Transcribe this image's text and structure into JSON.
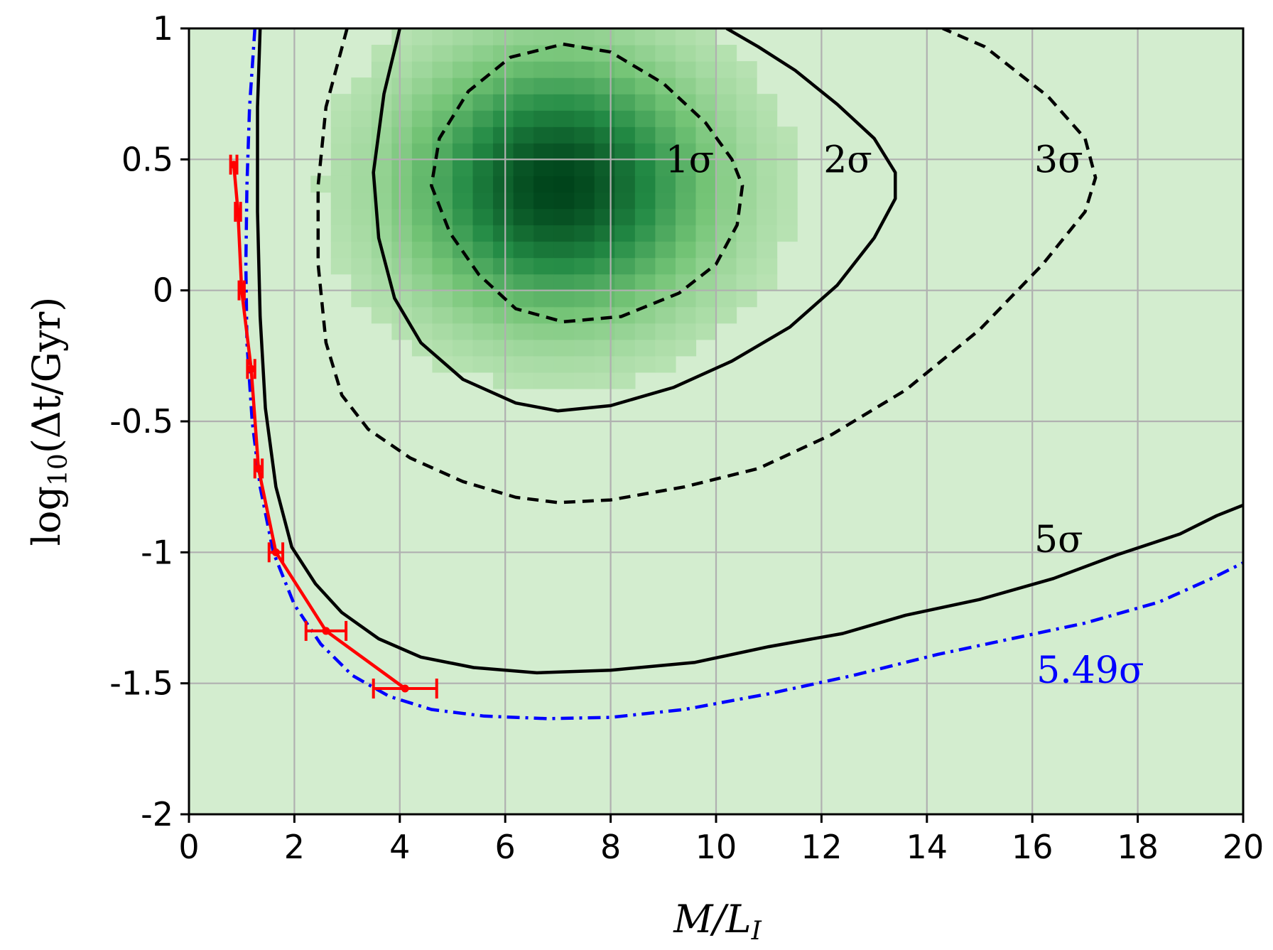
{
  "chart_data": {
    "type": "heatmap",
    "title": "",
    "xlabel": "M/L",
    "xlabel_sub": "I",
    "ylabel_pre": "log",
    "ylabel_sub": "10",
    "ylabel_post": "(Δt/Gyr)",
    "xlim": [
      0,
      20
    ],
    "ylim": [
      -2,
      1
    ],
    "grid": true,
    "x_ticks": [
      {
        "value": 0,
        "label": "0"
      },
      {
        "value": 2,
        "label": "2"
      },
      {
        "value": 4,
        "label": "4"
      },
      {
        "value": 6,
        "label": "6"
      },
      {
        "value": 8,
        "label": "8"
      },
      {
        "value": 10,
        "label": "10"
      },
      {
        "value": 12,
        "label": "12"
      },
      {
        "value": 14,
        "label": "14"
      },
      {
        "value": 16,
        "label": "16"
      },
      {
        "value": 18,
        "label": "18"
      },
      {
        "value": 20,
        "label": "20"
      }
    ],
    "y_ticks": [
      {
        "value": -2,
        "label": "-2"
      },
      {
        "value": -1.5,
        "label": "-1.5"
      },
      {
        "value": -1,
        "label": "-1"
      },
      {
        "value": -0.5,
        "label": "-0.5"
      },
      {
        "value": 0,
        "label": "0"
      },
      {
        "value": 0.5,
        "label": "0.5"
      },
      {
        "value": 1,
        "label": "1"
      }
    ],
    "density": {
      "peak_x": 7.0,
      "peak_y": 0.4,
      "spread_x": 1.9,
      "spread_y": 0.33,
      "background_color": "#d3edcf",
      "peak_color": "#00441b"
    },
    "contours": [
      {
        "label": "1σ",
        "style": "dashed",
        "color": "#000000",
        "label_x": 9.5,
        "label_y": 0.5,
        "points": [
          [
            7.1,
            0.94
          ],
          [
            8.0,
            0.91
          ],
          [
            9.0,
            0.79
          ],
          [
            9.8,
            0.64
          ],
          [
            10.3,
            0.5
          ],
          [
            10.5,
            0.4
          ],
          [
            10.4,
            0.25
          ],
          [
            10.0,
            0.1
          ],
          [
            9.3,
            -0.01
          ],
          [
            8.2,
            -0.1
          ],
          [
            7.1,
            -0.12
          ],
          [
            6.2,
            -0.07
          ],
          [
            5.5,
            0.06
          ],
          [
            4.95,
            0.22
          ],
          [
            4.6,
            0.4
          ],
          [
            4.75,
            0.58
          ],
          [
            5.3,
            0.76
          ],
          [
            6.1,
            0.89
          ],
          [
            7.1,
            0.94
          ]
        ]
      },
      {
        "label": "2σ",
        "style": "solid",
        "color": "#000000",
        "label_x": 12.5,
        "label_y": 0.5,
        "points": [
          [
            4.0,
            1.0
          ],
          [
            3.7,
            0.75
          ],
          [
            3.5,
            0.45
          ],
          [
            3.6,
            0.2
          ],
          [
            3.9,
            -0.03
          ],
          [
            4.4,
            -0.2
          ],
          [
            5.2,
            -0.34
          ],
          [
            6.2,
            -0.43
          ],
          [
            7.0,
            -0.46
          ],
          [
            8.0,
            -0.44
          ],
          [
            9.2,
            -0.37
          ],
          [
            10.3,
            -0.27
          ],
          [
            11.4,
            -0.14
          ],
          [
            12.3,
            0.02
          ],
          [
            13.0,
            0.2
          ],
          [
            13.4,
            0.35
          ],
          [
            13.4,
            0.45
          ],
          [
            13.0,
            0.58
          ],
          [
            12.3,
            0.71
          ],
          [
            11.5,
            0.84
          ],
          [
            10.8,
            0.93
          ],
          [
            10.2,
            1.0
          ]
        ]
      },
      {
        "label": "3σ",
        "style": "dashed",
        "color": "#000000",
        "label_x": 16.5,
        "label_y": 0.5,
        "points": [
          [
            3.0,
            1.0
          ],
          [
            2.6,
            0.7
          ],
          [
            2.45,
            0.4
          ],
          [
            2.45,
            0.1
          ],
          [
            2.6,
            -0.2
          ],
          [
            2.9,
            -0.4
          ],
          [
            3.4,
            -0.53
          ],
          [
            4.2,
            -0.64
          ],
          [
            5.2,
            -0.73
          ],
          [
            6.2,
            -0.79
          ],
          [
            7.0,
            -0.81
          ],
          [
            8.0,
            -0.8
          ],
          [
            9.4,
            -0.75
          ],
          [
            10.8,
            -0.68
          ],
          [
            12.2,
            -0.55
          ],
          [
            13.6,
            -0.38
          ],
          [
            15.0,
            -0.15
          ],
          [
            16.2,
            0.1
          ],
          [
            17.0,
            0.3
          ],
          [
            17.2,
            0.43
          ],
          [
            17.0,
            0.58
          ],
          [
            16.3,
            0.74
          ],
          [
            15.1,
            0.93
          ],
          [
            14.3,
            1.0
          ]
        ]
      },
      {
        "label": "5σ",
        "style": "solid",
        "color": "#000000",
        "label_x": 16.5,
        "label_y": -0.95,
        "points": [
          [
            1.35,
            1.0
          ],
          [
            1.3,
            0.7
          ],
          [
            1.3,
            0.3
          ],
          [
            1.35,
            -0.1
          ],
          [
            1.45,
            -0.45
          ],
          [
            1.65,
            -0.75
          ],
          [
            1.95,
            -0.98
          ],
          [
            2.4,
            -1.12
          ],
          [
            2.9,
            -1.23
          ],
          [
            3.6,
            -1.33
          ],
          [
            4.4,
            -1.4
          ],
          [
            5.4,
            -1.44
          ],
          [
            6.6,
            -1.46
          ],
          [
            8.0,
            -1.45
          ],
          [
            9.6,
            -1.42
          ],
          [
            11.0,
            -1.36
          ],
          [
            12.4,
            -1.31
          ],
          [
            13.6,
            -1.24
          ],
          [
            15.0,
            -1.18
          ],
          [
            16.4,
            -1.1
          ],
          [
            17.6,
            -1.01
          ],
          [
            18.8,
            -0.93
          ],
          [
            19.5,
            -0.86
          ],
          [
            20.0,
            -0.82
          ]
        ]
      },
      {
        "label": "5.49σ",
        "style": "dashdot",
        "color": "#0000ff",
        "label_x": 17.1,
        "label_y": -1.45,
        "points": [
          [
            1.25,
            1.0
          ],
          [
            1.15,
            0.7
          ],
          [
            1.1,
            0.4
          ],
          [
            1.08,
            0.1
          ],
          [
            1.1,
            -0.2
          ],
          [
            1.2,
            -0.5
          ],
          [
            1.35,
            -0.75
          ],
          [
            1.6,
            -1.0
          ],
          [
            2.0,
            -1.2
          ],
          [
            2.5,
            -1.35
          ],
          [
            3.1,
            -1.47
          ],
          [
            3.8,
            -1.55
          ],
          [
            4.6,
            -1.6
          ],
          [
            5.6,
            -1.625
          ],
          [
            6.8,
            -1.635
          ],
          [
            8.0,
            -1.63
          ],
          [
            9.4,
            -1.6
          ],
          [
            11.0,
            -1.54
          ],
          [
            12.6,
            -1.47
          ],
          [
            14.2,
            -1.39
          ],
          [
            15.6,
            -1.33
          ],
          [
            17.0,
            -1.27
          ],
          [
            18.4,
            -1.19
          ],
          [
            19.4,
            -1.1
          ],
          [
            20.0,
            -1.04
          ]
        ]
      }
    ],
    "series": [
      {
        "color": "#ff0000",
        "points": [
          {
            "x": 0.85,
            "y": 0.48,
            "xerr": 0.06
          },
          {
            "x": 0.93,
            "y": 0.3,
            "xerr": 0.05
          },
          {
            "x": 1.0,
            "y": 0.0,
            "xerr": 0.05
          },
          {
            "x": 1.18,
            "y": -0.3,
            "xerr": 0.07
          },
          {
            "x": 1.32,
            "y": -0.68,
            "xerr": 0.07
          },
          {
            "x": 1.65,
            "y": -1.0,
            "xerr": 0.13
          },
          {
            "x": 2.6,
            "y": -1.3,
            "xerr": 0.38
          },
          {
            "x": 4.1,
            "y": -1.52,
            "xerr": 0.6
          }
        ]
      }
    ]
  }
}
